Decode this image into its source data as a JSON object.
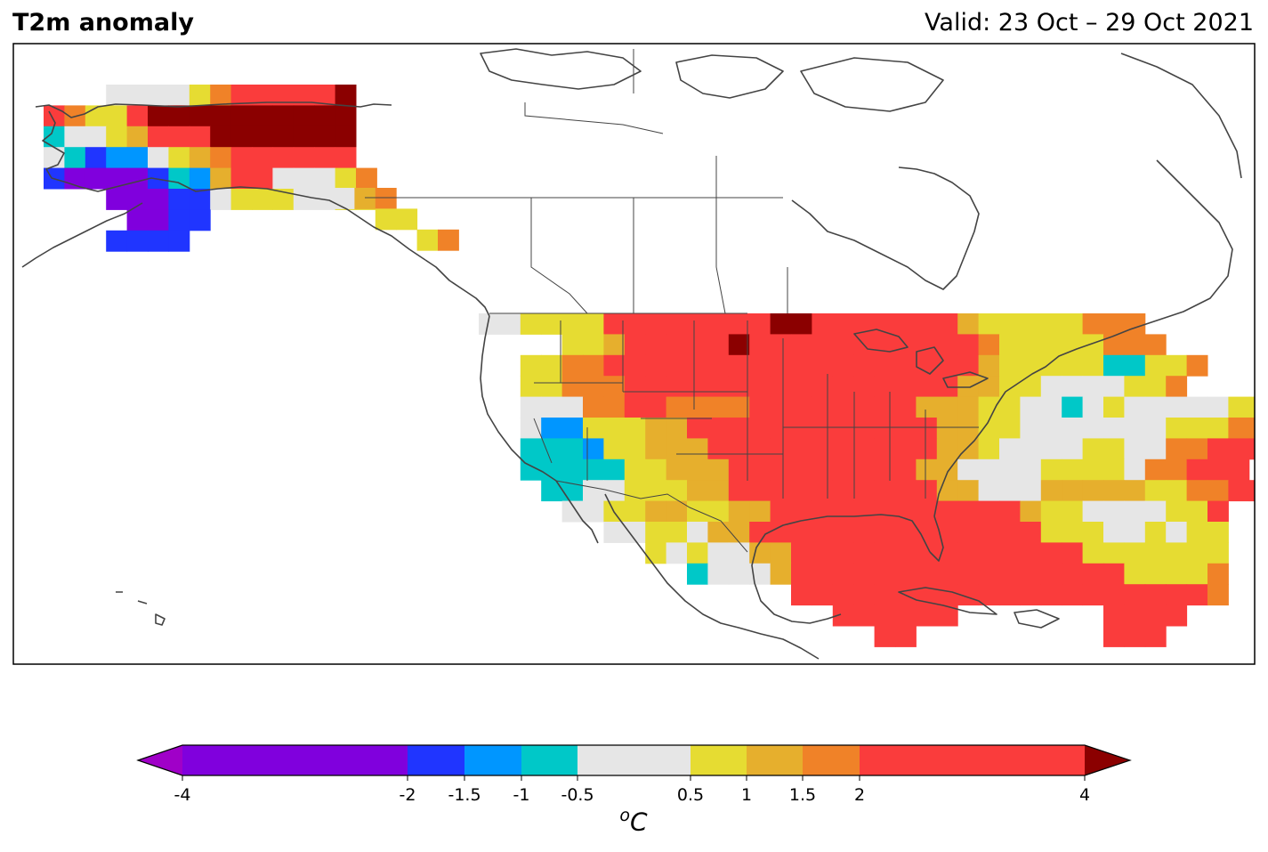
{
  "header": {
    "title": "T2m anomaly",
    "valid_label": "Valid: 23 Oct – 29 Oct 2021"
  },
  "colorbar": {
    "unit_sup": "o",
    "unit_main": "C",
    "bins": [
      {
        "from": -4,
        "to": -2,
        "color": "#8000dd"
      },
      {
        "from": -2,
        "to": -1.5,
        "color": "#2035ff"
      },
      {
        "from": -1.5,
        "to": -1,
        "color": "#0096ff"
      },
      {
        "from": -1,
        "to": -0.5,
        "color": "#00c8c8"
      },
      {
        "from": -0.5,
        "to": 0.5,
        "color": "#e6e6e6"
      },
      {
        "from": 0.5,
        "to": 1,
        "color": "#e6dc32"
      },
      {
        "from": 1,
        "to": 1.5,
        "color": "#e6af2d"
      },
      {
        "from": 1.5,
        "to": 2,
        "color": "#f08228"
      },
      {
        "from": 2,
        "to": 4,
        "color": "#fa3c3c"
      }
    ],
    "under_color": "#a000c8",
    "over_color": "#8b0000",
    "ticks": [
      "-4",
      "-2",
      "-1.5",
      "-1",
      "-0.5",
      "0.5",
      "1",
      "1.5",
      "2",
      "4"
    ]
  },
  "map": {
    "region": "North America",
    "projection": "plate-carree",
    "coastline_color": "#444444",
    "grid_color_key": {
      "p": "#8000dd",
      "b": "#2035ff",
      "l": "#0096ff",
      "c": "#00c8c8",
      "g": "#e6e6e6",
      "y": "#e6dc32",
      "o": "#e6af2d",
      "r": "#f08228",
      "R": "#fa3c3c",
      "D": "#8b0000"
    },
    "alaska_grid": [
      "...ggggyrRRRRRD",
      "RryyRDDDDDDDDDD",
      "cggyoRRRDDDDDDD",
      "gcbllgyorRRRRRR",
      "bppppbcloRRgggyr",
      "...pppbbgyyyggyy",
      "....ppbb........",
      "...bbbb........."
    ],
    "bc_grid": [
      "gor...",
      "..yy..",
      "....yr"
    ],
    "conus_grid": [
      "ggyyyyRRRRRRRRDDRRRRRRRoyyyyyrrr..",
      "....yyoRRRRRDRRRRRRRRRRRryyyyyrrr..",
      "..yyrrRRRRRRRRRRRRRRRRRRoyyyyyccyyr",
      "..yyrrrRRRRRRRRRRRRRRRRooyyggggyyr.",
      "..gggrrRRrrrrRRRRRRRRoooyyggcgygggggyy",
      "..gllyyyooRRRRRRRRRRRRooyygggggggyyyrrr",
      "..ccclyyoooRRRRRRRRRRRooyggggyyggrrRRR",
      "..cccccyyoooRRRRRRRRRooggggyyyygrrRRR",
      "...ccggyyyooRRRRRRRRRRoogggoooooyyrrRR",
      "....ggyyooyyooRRRRRRRRRRRRoyyggggyyR",
      "......ggyygooRRRRRRRRRRRRRRyyyggygyy",
      "........ygyggooRRRRRRRRRRRRRRyyyyyyy",
      "..........cgggoRRRRRRRRRRRRRRRRyyyyr",
      "...............RRRRRRRRRRRRRRRRRRRRr",
      ".................RRRRRR.......RRRR",
      "...................RR.........RRR"
    ]
  }
}
